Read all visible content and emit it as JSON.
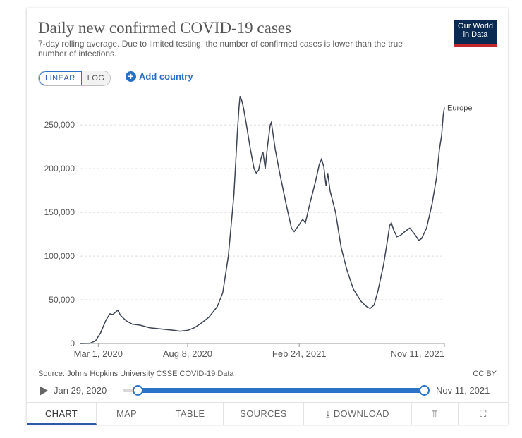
{
  "header": {
    "title": "Daily new confirmed COVID-19 cases",
    "subtitle": "7-day rolling average. Due to limited testing, the number of confirmed cases is lower than the true number of infections.",
    "logo_line1": "Our World",
    "logo_line2": "in Data"
  },
  "controls": {
    "scale_linear": "LINEAR",
    "scale_log": "LOG",
    "add_country": "Add country"
  },
  "chart_data": {
    "type": "line",
    "title": "Daily new confirmed COVID-19 cases",
    "ylim": [
      0,
      280000
    ],
    "y_ticks": [
      0,
      50000,
      100000,
      150000,
      200000,
      250000
    ],
    "y_tick_labels": [
      "0",
      "50,000",
      "100,000",
      "150,000",
      "200,000",
      "250,000"
    ],
    "x_range": [
      "2020-01-29",
      "2021-11-11"
    ],
    "x_ticks": [
      "2020-03-01",
      "2020-08-08",
      "2021-02-24",
      "2021-11-11"
    ],
    "x_tick_labels": [
      "Mar 1, 2020",
      "Aug 8, 2020",
      "Feb 24, 2021",
      "Nov 11, 2021"
    ],
    "grid": true,
    "series": [
      {
        "name": "Europe",
        "color": "#3c4454",
        "points": [
          [
            "2020-01-29",
            0
          ],
          [
            "2020-02-15",
            200
          ],
          [
            "2020-02-25",
            3000
          ],
          [
            "2020-03-05",
            12000
          ],
          [
            "2020-03-15",
            27000
          ],
          [
            "2020-03-22",
            34000
          ],
          [
            "2020-03-27",
            33000
          ],
          [
            "2020-04-01",
            36000
          ],
          [
            "2020-04-05",
            38000
          ],
          [
            "2020-04-10",
            32000
          ],
          [
            "2020-04-20",
            26000
          ],
          [
            "2020-05-01",
            22000
          ],
          [
            "2020-05-15",
            21000
          ],
          [
            "2020-06-01",
            18000
          ],
          [
            "2020-06-15",
            17000
          ],
          [
            "2020-07-01",
            16000
          ],
          [
            "2020-07-15",
            15000
          ],
          [
            "2020-07-25",
            14000
          ],
          [
            "2020-08-08",
            15000
          ],
          [
            "2020-08-20",
            18000
          ],
          [
            "2020-09-01",
            23000
          ],
          [
            "2020-09-15",
            30000
          ],
          [
            "2020-09-30",
            42000
          ],
          [
            "2020-10-10",
            58000
          ],
          [
            "2020-10-20",
            100000
          ],
          [
            "2020-10-30",
            170000
          ],
          [
            "2020-11-05",
            240000
          ],
          [
            "2020-11-08",
            270000
          ],
          [
            "2020-11-10",
            283000
          ],
          [
            "2020-11-13",
            278000
          ],
          [
            "2020-11-16",
            270000
          ],
          [
            "2020-11-21",
            252000
          ],
          [
            "2020-11-28",
            224000
          ],
          [
            "2020-12-05",
            200000
          ],
          [
            "2020-12-09",
            195000
          ],
          [
            "2020-12-13",
            198000
          ],
          [
            "2020-12-18",
            213000
          ],
          [
            "2020-12-21",
            219000
          ],
          [
            "2020-12-25",
            200000
          ],
          [
            "2020-12-29",
            225000
          ],
          [
            "2021-01-03",
            250000
          ],
          [
            "2021-01-05",
            253000
          ],
          [
            "2021-01-08",
            240000
          ],
          [
            "2021-01-12",
            222000
          ],
          [
            "2021-01-20",
            195000
          ],
          [
            "2021-02-01",
            158000
          ],
          [
            "2021-02-10",
            132000
          ],
          [
            "2021-02-15",
            128000
          ],
          [
            "2021-02-24",
            136000
          ],
          [
            "2021-03-02",
            142000
          ],
          [
            "2021-03-07",
            138000
          ],
          [
            "2021-03-15",
            160000
          ],
          [
            "2021-03-25",
            185000
          ],
          [
            "2021-04-01",
            205000
          ],
          [
            "2021-04-05",
            211000
          ],
          [
            "2021-04-09",
            202000
          ],
          [
            "2021-04-13",
            180000
          ],
          [
            "2021-04-16",
            195000
          ],
          [
            "2021-04-20",
            175000
          ],
          [
            "2021-04-30",
            150000
          ],
          [
            "2021-05-10",
            110000
          ],
          [
            "2021-05-20",
            85000
          ],
          [
            "2021-06-01",
            62000
          ],
          [
            "2021-06-15",
            48000
          ],
          [
            "2021-06-25",
            42000
          ],
          [
            "2021-07-01",
            40000
          ],
          [
            "2021-07-08",
            44000
          ],
          [
            "2021-07-15",
            60000
          ],
          [
            "2021-07-25",
            90000
          ],
          [
            "2021-08-01",
            118000
          ],
          [
            "2021-08-05",
            135000
          ],
          [
            "2021-08-08",
            138000
          ],
          [
            "2021-08-12",
            130000
          ],
          [
            "2021-08-18",
            122000
          ],
          [
            "2021-08-25",
            124000
          ],
          [
            "2021-09-01",
            128000
          ],
          [
            "2021-09-10",
            132000
          ],
          [
            "2021-09-15",
            128000
          ],
          [
            "2021-09-20",
            124000
          ],
          [
            "2021-09-26",
            118000
          ],
          [
            "2021-10-01",
            120000
          ],
          [
            "2021-10-10",
            132000
          ],
          [
            "2021-10-20",
            160000
          ],
          [
            "2021-10-28",
            190000
          ],
          [
            "2021-11-02",
            222000
          ],
          [
            "2021-11-06",
            238000
          ],
          [
            "2021-11-09",
            262000
          ],
          [
            "2021-11-11",
            270000
          ]
        ]
      }
    ]
  },
  "footer": {
    "source": "Source: Johns Hopkins University CSSE COVID-19 Data",
    "license": "CC BY"
  },
  "timeline": {
    "start_label": "Jan 29, 2020",
    "end_label": "Nov 11, 2021"
  },
  "tabs": [
    {
      "label": "CHART",
      "active": true
    },
    {
      "label": "MAP"
    },
    {
      "label": "TABLE"
    },
    {
      "label": "SOURCES"
    },
    {
      "label": "DOWNLOAD",
      "icon": "download-icon"
    },
    {
      "icon": "share-icon"
    },
    {
      "icon": "fullscreen-icon"
    }
  ]
}
